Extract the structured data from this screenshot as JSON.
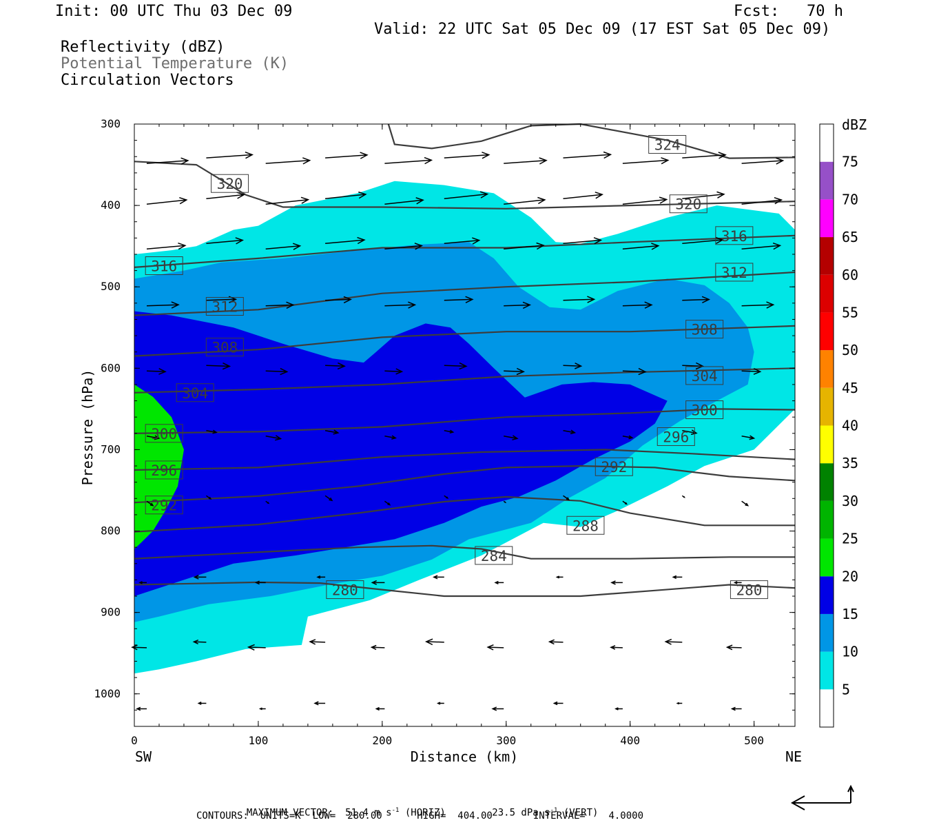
{
  "header": {
    "init": "Init: 00 UTC Thu 03 Dec 09",
    "fcst": "Fcst:   70 h",
    "valid": "Valid: 22 UTC Sat 05 Dec 09 (17 EST Sat 05 Dec 09)",
    "field1": "Reflectivity (dBZ)",
    "field2": "Potential Temperature (K)",
    "field3": "Circulation Vectors"
  },
  "axes": {
    "xlabel": "Distance (km)",
    "ylabel": "Pressure (hPa)",
    "left_end": "SW",
    "right_end": "NE",
    "xticks": [
      0,
      100,
      200,
      300,
      400,
      500
    ],
    "yticks": [
      300,
      400,
      500,
      600,
      700,
      800,
      900,
      1000
    ],
    "xlim": [
      0,
      533
    ],
    "ylim": [
      300,
      1040
    ]
  },
  "colorbar": {
    "title": "dBZ",
    "levels": [
      5,
      10,
      15,
      20,
      25,
      30,
      35,
      40,
      45,
      50,
      55,
      60,
      65,
      70,
      75
    ],
    "colors": [
      "#ffffff",
      "#00e6e6",
      "#0096e6",
      "#0000e6",
      "#00e600",
      "#00b400",
      "#008200",
      "#ffff00",
      "#e6b400",
      "#ff8200",
      "#ff0000",
      "#dc0000",
      "#b40000",
      "#ff00ff",
      "#9650c8",
      "#ffffff"
    ]
  },
  "footer": {
    "max_vector": "MAXIMUM VECTOR:  51.4 m s",
    "max_vector_sup": "-1",
    "horiz": " (HORIZ)        23.5 dPa s",
    "vert_sup": "-1",
    "vert": " (VERT)",
    "contours": "CONTOURS:  UNITS=K  LOW=  280.00      HIGH=  404.00       INTERVAL=    4.0000"
  },
  "chart_data": {
    "type": "contour",
    "reflectivity_regions": [
      {
        "dbz": 5,
        "boundary": [
          [
            0,
            460
          ],
          [
            30,
            455
          ],
          [
            50,
            450
          ],
          [
            80,
            430
          ],
          [
            100,
            425
          ],
          [
            130,
            400
          ],
          [
            180,
            385
          ],
          [
            210,
            370
          ],
          [
            250,
            375
          ],
          [
            290,
            385
          ],
          [
            320,
            415
          ],
          [
            340,
            445
          ],
          [
            360,
            447
          ],
          [
            390,
            435
          ],
          [
            430,
            415
          ],
          [
            470,
            400
          ],
          [
            520,
            410
          ],
          [
            533,
            430
          ],
          [
            533,
            650
          ],
          [
            500,
            700
          ],
          [
            460,
            720
          ],
          [
            430,
            745
          ],
          [
            390,
            775
          ],
          [
            360,
            795
          ],
          [
            330,
            790
          ],
          [
            280,
            830
          ],
          [
            230,
            860
          ],
          [
            190,
            885
          ],
          [
            140,
            905
          ],
          [
            135,
            940
          ],
          [
            90,
            945
          ],
          [
            50,
            960
          ],
          [
            20,
            970
          ],
          [
            0,
            975
          ]
        ]
      },
      {
        "dbz": 10,
        "boundary": [
          [
            0,
            490
          ],
          [
            40,
            480
          ],
          [
            70,
            470
          ],
          [
            120,
            465
          ],
          [
            180,
            455
          ],
          [
            230,
            448
          ],
          [
            270,
            445
          ],
          [
            290,
            465
          ],
          [
            310,
            500
          ],
          [
            335,
            525
          ],
          [
            360,
            528
          ],
          [
            390,
            505
          ],
          [
            430,
            490
          ],
          [
            460,
            498
          ],
          [
            480,
            520
          ],
          [
            495,
            550
          ],
          [
            500,
            580
          ],
          [
            495,
            620
          ],
          [
            470,
            640
          ],
          [
            440,
            665
          ],
          [
            410,
            695
          ],
          [
            380,
            735
          ],
          [
            350,
            760
          ],
          [
            320,
            790
          ],
          [
            270,
            810
          ],
          [
            240,
            835
          ],
          [
            200,
            855
          ],
          [
            160,
            865
          ],
          [
            110,
            880
          ],
          [
            60,
            890
          ],
          [
            20,
            905
          ],
          [
            0,
            912
          ]
        ]
      },
      {
        "dbz": 15,
        "boundary": [
          [
            0,
            530
          ],
          [
            30,
            535
          ],
          [
            80,
            550
          ],
          [
            120,
            570
          ],
          [
            160,
            588
          ],
          [
            185,
            593
          ],
          [
            195,
            580
          ],
          [
            210,
            560
          ],
          [
            235,
            545
          ],
          [
            255,
            550
          ],
          [
            270,
            570
          ],
          [
            290,
            600
          ],
          [
            315,
            636
          ],
          [
            345,
            620
          ],
          [
            370,
            617
          ],
          [
            400,
            620
          ],
          [
            430,
            640
          ],
          [
            420,
            668
          ],
          [
            400,
            690
          ],
          [
            370,
            712
          ],
          [
            340,
            738
          ],
          [
            310,
            758
          ],
          [
            280,
            770
          ],
          [
            250,
            790
          ],
          [
            210,
            810
          ],
          [
            170,
            820
          ],
          [
            130,
            830
          ],
          [
            80,
            840
          ],
          [
            40,
            860
          ],
          [
            0,
            880
          ]
        ]
      },
      {
        "dbz": 20,
        "boundary": [
          [
            0,
            620
          ],
          [
            15,
            635
          ],
          [
            30,
            660
          ],
          [
            40,
            700
          ],
          [
            35,
            745
          ],
          [
            25,
            775
          ],
          [
            15,
            800
          ],
          [
            5,
            815
          ],
          [
            0,
            822
          ]
        ]
      }
    ],
    "isentropes_K": [
      280,
      284,
      288,
      292,
      296,
      300,
      304,
      308,
      312,
      316,
      320,
      324
    ],
    "contour_label_positions_km_hpa": [
      {
        "k": 324,
        "x": 430,
        "p": 325
      },
      {
        "k": 320,
        "x": 77,
        "p": 373
      },
      {
        "k": 320,
        "x": 447,
        "p": 398
      },
      {
        "k": 316,
        "x": 24,
        "p": 474
      },
      {
        "k": 316,
        "x": 484,
        "p": 437
      },
      {
        "k": 312,
        "x": 73,
        "p": 524
      },
      {
        "k": 312,
        "x": 484,
        "p": 482
      },
      {
        "k": 308,
        "x": 73,
        "p": 574
      },
      {
        "k": 308,
        "x": 460,
        "p": 552
      },
      {
        "k": 304,
        "x": 49,
        "p": 630
      },
      {
        "k": 304,
        "x": 460,
        "p": 609
      },
      {
        "k": 300,
        "x": 24,
        "p": 680
      },
      {
        "k": 300,
        "x": 460,
        "p": 651
      },
      {
        "k": 296,
        "x": 24,
        "p": 725
      },
      {
        "k": 296,
        "x": 437,
        "p": 684
      },
      {
        "k": 292,
        "x": 24,
        "p": 768
      },
      {
        "k": 292,
        "x": 387,
        "p": 721
      },
      {
        "k": 288,
        "x": 364,
        "p": 793
      },
      {
        "k": 284,
        "x": 290,
        "p": 830
      },
      {
        "k": 280,
        "x": 170,
        "p": 872
      },
      {
        "k": 280,
        "x": 496,
        "p": 872
      }
    ],
    "max_vector_horiz_m_s": 51.4,
    "max_vector_vert_dPa_s": 23.5
  }
}
